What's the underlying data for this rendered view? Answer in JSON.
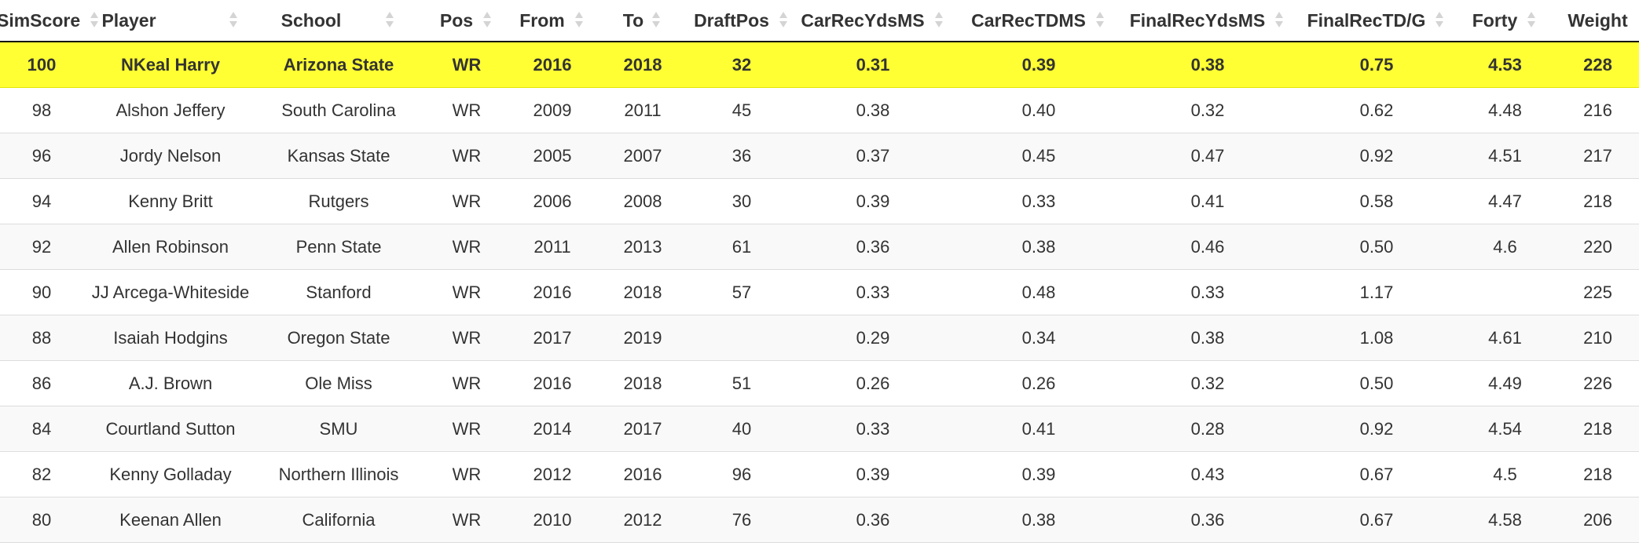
{
  "columns": [
    {
      "key": "simscore",
      "label": "SimScore",
      "sortable": true
    },
    {
      "key": "player",
      "label": "Player",
      "sortable": true
    },
    {
      "key": "school",
      "label": "School",
      "sortable": true
    },
    {
      "key": "pos",
      "label": "Pos",
      "sortable": true
    },
    {
      "key": "from",
      "label": "From",
      "sortable": true
    },
    {
      "key": "to",
      "label": "To",
      "sortable": true
    },
    {
      "key": "draftpos",
      "label": "DraftPos",
      "sortable": true
    },
    {
      "key": "carrecydsms",
      "label": "CarRecYdsMS",
      "sortable": true
    },
    {
      "key": "carrectdms",
      "label": "CarRecTDMS",
      "sortable": true
    },
    {
      "key": "finalrecydsms",
      "label": "FinalRecYdsMS",
      "sortable": true
    },
    {
      "key": "finalrectdg",
      "label": "FinalRecTD/G",
      "sortable": true
    },
    {
      "key": "forty",
      "label": "Forty",
      "sortable": true
    },
    {
      "key": "weight",
      "label": "Weight",
      "sortable": false
    }
  ],
  "rows": [
    {
      "highlight": true,
      "cells": [
        "100",
        "NKeal Harry",
        "Arizona State",
        "WR",
        "2016",
        "2018",
        "32",
        "0.31",
        "0.39",
        "0.38",
        "0.75",
        "4.53",
        "228"
      ]
    },
    {
      "highlight": false,
      "cells": [
        "98",
        "Alshon Jeffery",
        "South Carolina",
        "WR",
        "2009",
        "2011",
        "45",
        "0.38",
        "0.40",
        "0.32",
        "0.62",
        "4.48",
        "216"
      ]
    },
    {
      "highlight": false,
      "cells": [
        "96",
        "Jordy Nelson",
        "Kansas State",
        "WR",
        "2005",
        "2007",
        "36",
        "0.37",
        "0.45",
        "0.47",
        "0.92",
        "4.51",
        "217"
      ]
    },
    {
      "highlight": false,
      "cells": [
        "94",
        "Kenny Britt",
        "Rutgers",
        "WR",
        "2006",
        "2008",
        "30",
        "0.39",
        "0.33",
        "0.41",
        "0.58",
        "4.47",
        "218"
      ]
    },
    {
      "highlight": false,
      "cells": [
        "92",
        "Allen Robinson",
        "Penn State",
        "WR",
        "2011",
        "2013",
        "61",
        "0.36",
        "0.38",
        "0.46",
        "0.50",
        "4.6",
        "220"
      ]
    },
    {
      "highlight": false,
      "cells": [
        "90",
        "JJ Arcega-Whiteside",
        "Stanford",
        "WR",
        "2016",
        "2018",
        "57",
        "0.33",
        "0.48",
        "0.33",
        "1.17",
        "",
        "225"
      ]
    },
    {
      "highlight": false,
      "cells": [
        "88",
        "Isaiah Hodgins",
        "Oregon State",
        "WR",
        "2017",
        "2019",
        "",
        "0.29",
        "0.34",
        "0.38",
        "1.08",
        "4.61",
        "210"
      ]
    },
    {
      "highlight": false,
      "cells": [
        "86",
        "A.J. Brown",
        "Ole Miss",
        "WR",
        "2016",
        "2018",
        "51",
        "0.26",
        "0.26",
        "0.32",
        "0.50",
        "4.49",
        "226"
      ]
    },
    {
      "highlight": false,
      "cells": [
        "84",
        "Courtland Sutton",
        "SMU",
        "WR",
        "2014",
        "2017",
        "40",
        "0.33",
        "0.41",
        "0.28",
        "0.92",
        "4.54",
        "218"
      ]
    },
    {
      "highlight": false,
      "cells": [
        "82",
        "Kenny Golladay",
        "Northern Illinois",
        "WR",
        "2012",
        "2016",
        "96",
        "0.39",
        "0.39",
        "0.43",
        "0.67",
        "4.5",
        "218"
      ]
    },
    {
      "highlight": false,
      "cells": [
        "80",
        "Keenan Allen",
        "California",
        "WR",
        "2010",
        "2012",
        "76",
        "0.36",
        "0.38",
        "0.36",
        "0.67",
        "4.58",
        "206"
      ]
    }
  ],
  "colors": {
    "highlight": "#ffff33",
    "stripe": "#f9f9f9",
    "header_border": "#111111",
    "sort_icon": "#d4d4d4"
  },
  "icons": {
    "sort": "sort-both-icon"
  }
}
